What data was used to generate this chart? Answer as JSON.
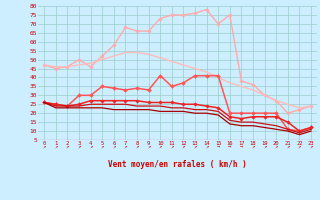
{
  "xlabel": "Vent moyen/en rafales ( km/h )",
  "background_color": "#cceeff",
  "grid_color": "#99cccc",
  "ylabel_ticks": [
    5,
    10,
    15,
    20,
    25,
    30,
    35,
    40,
    45,
    50,
    55,
    60,
    65,
    70,
    75,
    80
  ],
  "x_ticks": [
    0,
    1,
    2,
    3,
    4,
    5,
    6,
    7,
    8,
    9,
    10,
    11,
    12,
    13,
    14,
    15,
    16,
    17,
    18,
    19,
    20,
    21,
    22,
    23
  ],
  "ylim": [
    5,
    80
  ],
  "xlim": [
    -0.5,
    23.5
  ],
  "series": [
    {
      "name": "rafales_top",
      "color": "#ffaaaa",
      "linewidth": 1.0,
      "marker": "D",
      "markersize": 1.8,
      "data": [
        47,
        45,
        46,
        50,
        46,
        52,
        58,
        68,
        66,
        66,
        73,
        75,
        75,
        76,
        78,
        70,
        75,
        38,
        36,
        30,
        27,
        20,
        22,
        24
      ]
    },
    {
      "name": "rafales_smooth",
      "color": "#ffbbbb",
      "linewidth": 1.0,
      "marker": null,
      "markersize": 0,
      "data": [
        47,
        46,
        46,
        47,
        48,
        50,
        52,
        54,
        54,
        53,
        51,
        49,
        47,
        45,
        43,
        40,
        37,
        35,
        33,
        30,
        27,
        25,
        23,
        24
      ]
    },
    {
      "name": "vent_top",
      "color": "#ff5555",
      "linewidth": 1.1,
      "marker": "D",
      "markersize": 2.0,
      "data": [
        26,
        25,
        24,
        30,
        30,
        35,
        34,
        33,
        34,
        33,
        41,
        35,
        37,
        41,
        41,
        41,
        20,
        20,
        20,
        20,
        20,
        11,
        10,
        12
      ]
    },
    {
      "name": "vent_mid",
      "color": "#ee2222",
      "linewidth": 1.1,
      "marker": "D",
      "markersize": 1.8,
      "data": [
        26,
        25,
        24,
        25,
        27,
        27,
        27,
        27,
        27,
        26,
        26,
        26,
        25,
        25,
        24,
        23,
        18,
        17,
        18,
        18,
        18,
        15,
        10,
        12
      ]
    },
    {
      "name": "vent_low1",
      "color": "#cc1111",
      "linewidth": 0.9,
      "marker": null,
      "markersize": 0,
      "data": [
        26,
        24,
        24,
        24,
        25,
        25,
        25,
        25,
        24,
        24,
        24,
        23,
        23,
        22,
        22,
        21,
        16,
        15,
        15,
        14,
        13,
        11,
        9,
        11
      ]
    },
    {
      "name": "vent_low2",
      "color": "#aa0000",
      "linewidth": 0.9,
      "marker": null,
      "markersize": 0,
      "data": [
        26,
        23,
        23,
        23,
        23,
        23,
        22,
        22,
        22,
        22,
        21,
        21,
        21,
        20,
        20,
        19,
        14,
        13,
        13,
        12,
        11,
        10,
        8,
        10
      ]
    }
  ],
  "arrows": [
    "NE",
    "NE",
    "NE",
    "NE",
    "NE",
    "NE",
    "NE",
    "NE",
    "NE",
    "NE",
    "NE",
    "NE",
    "NE",
    "NE",
    "NE",
    "E",
    "E",
    "E",
    "NE",
    "NE",
    "NE",
    "NE",
    "NE",
    "NE"
  ]
}
